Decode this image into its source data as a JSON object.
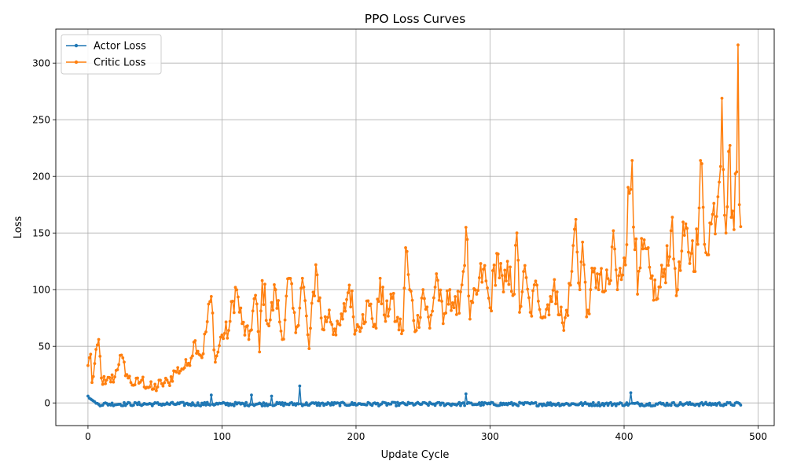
{
  "chart_data": {
    "type": "line",
    "title": "PPO Loss Curves",
    "xlabel": "Update Cycle",
    "ylabel": "Loss",
    "xlim": [
      -24,
      512
    ],
    "ylim": [
      -20,
      330
    ],
    "x_ticks": [
      0,
      100,
      200,
      300,
      400,
      500
    ],
    "y_ticks": [
      0,
      50,
      100,
      150,
      200,
      250,
      300
    ],
    "grid": true,
    "legend_position": "top-left",
    "marker": "circle",
    "n_points": 488,
    "series": [
      {
        "name": "Actor Loss",
        "color": "#1f77b4",
        "description": "near zero throughout, roughly -4 to 3, with occasional spikes",
        "spikes": [
          [
            0,
            6
          ],
          [
            92,
            7
          ],
          [
            122,
            7
          ],
          [
            137,
            6
          ],
          [
            158,
            15
          ],
          [
            282,
            8
          ],
          [
            405,
            9
          ]
        ],
        "values": []
      },
      {
        "name": "Critic Loss",
        "color": "#ff7f0e",
        "description": "noisy upward trend from about 30 to about 180",
        "keypoints": [
          [
            0,
            33
          ],
          [
            2,
            43
          ],
          [
            3,
            18
          ],
          [
            8,
            56
          ],
          [
            10,
            22
          ],
          [
            13,
            17
          ],
          [
            20,
            23
          ],
          [
            24,
            42
          ],
          [
            30,
            22
          ],
          [
            35,
            16
          ],
          [
            40,
            20
          ],
          [
            48,
            12
          ],
          [
            55,
            17
          ],
          [
            60,
            18
          ],
          [
            65,
            28
          ],
          [
            70,
            30
          ],
          [
            75,
            35
          ],
          [
            80,
            55
          ],
          [
            85,
            40
          ],
          [
            92,
            94
          ],
          [
            95,
            36
          ],
          [
            100,
            60
          ],
          [
            105,
            64
          ],
          [
            110,
            102
          ],
          [
            115,
            70
          ],
          [
            120,
            56
          ],
          [
            125,
            95
          ],
          [
            128,
            45
          ],
          [
            130,
            108
          ],
          [
            135,
            68
          ],
          [
            140,
            100
          ],
          [
            145,
            56
          ],
          [
            150,
            110
          ],
          [
            155,
            62
          ],
          [
            160,
            110
          ],
          [
            165,
            48
          ],
          [
            170,
            122
          ],
          [
            175,
            65
          ],
          [
            180,
            82
          ],
          [
            185,
            60
          ],
          [
            190,
            74
          ],
          [
            195,
            104
          ],
          [
            200,
            64
          ],
          [
            205,
            78
          ],
          [
            210,
            86
          ],
          [
            215,
            66
          ],
          [
            218,
            110
          ],
          [
            222,
            72
          ],
          [
            226,
            96
          ],
          [
            230,
            72
          ],
          [
            235,
            64
          ],
          [
            237,
            137
          ],
          [
            240,
            100
          ],
          [
            245,
            64
          ],
          [
            250,
            100
          ],
          [
            255,
            66
          ],
          [
            260,
            114
          ],
          [
            265,
            70
          ],
          [
            270,
            100
          ],
          [
            275,
            78
          ],
          [
            280,
            116
          ],
          [
            282,
            155
          ],
          [
            285,
            74
          ],
          [
            290,
            96
          ],
          [
            295,
            118
          ],
          [
            300,
            84
          ],
          [
            305,
            132
          ],
          [
            310,
            98
          ],
          [
            315,
            120
          ],
          [
            318,
            96
          ],
          [
            320,
            150
          ],
          [
            322,
            80
          ],
          [
            325,
            116
          ],
          [
            330,
            80
          ],
          [
            335,
            104
          ],
          [
            340,
            76
          ],
          [
            345,
            94
          ],
          [
            350,
            98
          ],
          [
            355,
            64
          ],
          [
            360,
            104
          ],
          [
            364,
            162
          ],
          [
            367,
            100
          ],
          [
            369,
            142
          ],
          [
            372,
            76
          ],
          [
            375,
            100
          ],
          [
            380,
            114
          ],
          [
            385,
            98
          ],
          [
            390,
            108
          ],
          [
            392,
            152
          ],
          [
            395,
            100
          ],
          [
            400,
            128
          ],
          [
            406,
            214
          ],
          [
            410,
            96
          ],
          [
            414,
            136
          ],
          [
            420,
            110
          ],
          [
            425,
            92
          ],
          [
            430,
            118
          ],
          [
            435,
            152
          ],
          [
            440,
            100
          ],
          [
            445,
            148
          ],
          [
            450,
            132
          ],
          [
            455,
            140
          ],
          [
            457,
            214
          ],
          [
            460,
            140
          ],
          [
            465,
            158
          ],
          [
            470,
            182
          ],
          [
            473,
            269
          ],
          [
            476,
            150
          ],
          [
            478,
            222
          ],
          [
            482,
            153
          ],
          [
            484,
            204
          ],
          [
            485,
            316
          ],
          [
            486,
            175
          ],
          [
            488,
            188
          ]
        ],
        "values": []
      }
    ]
  }
}
